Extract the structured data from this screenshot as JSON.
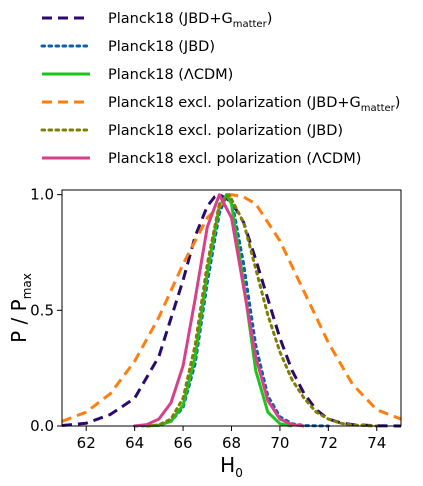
{
  "chart_data": {
    "type": "line",
    "xlabel": "H",
    "xlabel_sub": "0",
    "ylabel": "P / P",
    "ylabel_sub": "max",
    "xlim": [
      61,
      75
    ],
    "ylim": [
      0,
      1.02
    ],
    "xticks": [
      62,
      64,
      66,
      68,
      70,
      72,
      74
    ],
    "yticks": [
      0.0,
      0.5,
      1.0
    ],
    "ytick_labels": [
      "0.0",
      "0.5",
      "1.0"
    ],
    "grid": false,
    "legend_position": "top, above plot",
    "series": [
      {
        "name": "Planck18 (JBD+G",
        "name_sub": "matter",
        "name_suffix": ")",
        "color": "#2a0a6e",
        "dash": "dashed",
        "x": [
          61,
          62,
          63,
          64,
          65,
          66,
          66.5,
          67,
          67.3,
          67.5,
          68,
          68.5,
          69,
          69.5,
          70,
          70.5,
          71,
          71.5,
          72,
          72.5,
          73,
          74,
          75
        ],
        "y": [
          0.002,
          0.012,
          0.05,
          0.12,
          0.3,
          0.63,
          0.82,
          0.95,
          0.99,
          1.0,
          0.97,
          0.88,
          0.72,
          0.55,
          0.38,
          0.24,
          0.14,
          0.07,
          0.03,
          0.014,
          0.006,
          0.001,
          0.0
        ]
      },
      {
        "name": "Planck18 (JBD)",
        "color": "#0b5fae",
        "dash": "dotted",
        "x": [
          64,
          65,
          65.5,
          66,
          66.5,
          67,
          67.5,
          67.8,
          68,
          68.5,
          69,
          69.5,
          70,
          70.5,
          71,
          72
        ],
        "y": [
          0.0,
          0.003,
          0.02,
          0.08,
          0.27,
          0.62,
          0.92,
          1.0,
          0.98,
          0.7,
          0.35,
          0.13,
          0.04,
          0.01,
          0.002,
          0.0
        ]
      },
      {
        "name": "Planck18 (ΛCDM)",
        "color": "#1ec41e",
        "dash": "solid",
        "x": [
          64.5,
          65,
          65.5,
          66,
          66.5,
          67,
          67.5,
          67.8,
          68,
          68.5,
          69,
          69.5,
          70,
          70.5
        ],
        "y": [
          0.0,
          0.003,
          0.02,
          0.09,
          0.3,
          0.66,
          0.95,
          1.0,
          0.96,
          0.62,
          0.24,
          0.06,
          0.01,
          0.0
        ]
      },
      {
        "name": "Planck18 excl. polarization (JBD+G",
        "name_sub": "matter",
        "name_suffix": ")",
        "color": "#ff7f0e",
        "dash": "dashed",
        "x": [
          61,
          62,
          63,
          64,
          65,
          66,
          67,
          68,
          68.5,
          69,
          70,
          71,
          72,
          73,
          74,
          75
        ],
        "y": [
          0.02,
          0.06,
          0.14,
          0.28,
          0.47,
          0.7,
          0.9,
          1.0,
          0.99,
          0.96,
          0.8,
          0.58,
          0.36,
          0.18,
          0.07,
          0.03
        ]
      },
      {
        "name": "Planck18 excl. polarization (JBD)",
        "color": "#7f7f00",
        "dash": "dotted",
        "x": [
          64.5,
          65,
          65.5,
          66,
          66.5,
          67,
          67.5,
          67.9,
          68.5,
          69,
          69.5,
          70,
          70.5,
          71,
          71.5,
          72,
          72.5,
          73,
          74
        ],
        "y": [
          0.0,
          0.005,
          0.03,
          0.12,
          0.35,
          0.7,
          0.96,
          1.0,
          0.88,
          0.68,
          0.48,
          0.32,
          0.2,
          0.12,
          0.06,
          0.03,
          0.012,
          0.004,
          0.0
        ]
      },
      {
        "name": "Planck18 excl. polarization (ΛCDM)",
        "color": "#d6418a",
        "dash": "solid",
        "x": [
          64,
          64.5,
          65,
          65.5,
          66,
          66.5,
          67,
          67.5,
          68,
          68.5,
          69,
          69.5,
          70,
          70.5,
          71
        ],
        "y": [
          0.0,
          0.006,
          0.03,
          0.1,
          0.26,
          0.55,
          0.86,
          1.0,
          0.9,
          0.6,
          0.3,
          0.11,
          0.03,
          0.006,
          0.0
        ]
      }
    ]
  }
}
